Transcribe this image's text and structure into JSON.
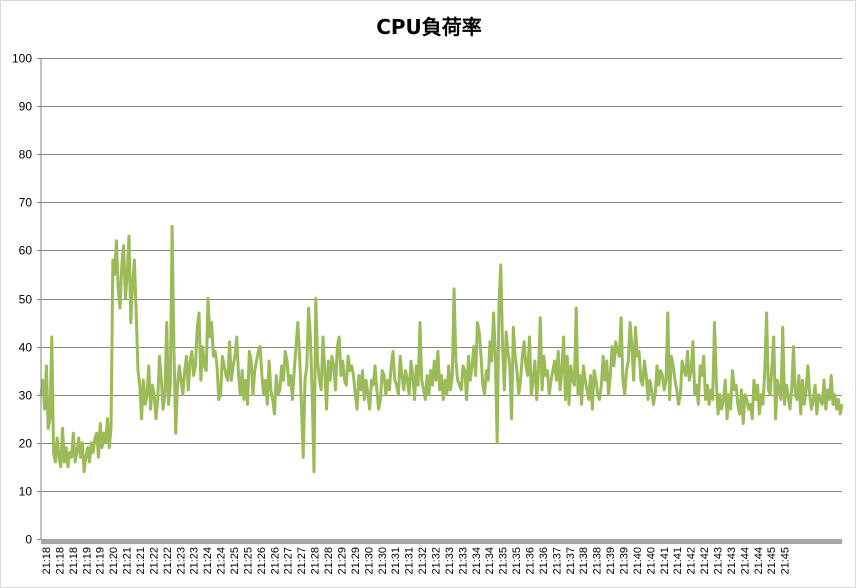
{
  "chart_data": {
    "type": "line",
    "title": "CPU負荷率",
    "xlabel": "",
    "ylabel": "",
    "ylim": [
      0,
      100
    ],
    "yticks": [
      0,
      10,
      20,
      30,
      40,
      50,
      60,
      70,
      80,
      90,
      100
    ],
    "grid": true,
    "legend": "none",
    "x_tick_labels": [
      "21:18",
      "21:18",
      "21:18",
      "21:19",
      "21:19",
      "21:20",
      "21:21",
      "21:21",
      "21:22",
      "21:22",
      "21:23",
      "21:23",
      "21:24",
      "21:24",
      "21:25",
      "21:25",
      "21:26",
      "21:26",
      "21:27",
      "21:27",
      "21:28",
      "21:28",
      "21:29",
      "21:29",
      "21:30",
      "21:30",
      "21:31",
      "21:31",
      "21:32",
      "21:32",
      "21:33",
      "21:33",
      "21:34",
      "21:34",
      "21:35",
      "21:35",
      "21:36",
      "21:36",
      "21:37",
      "21:37",
      "21:38",
      "21:38",
      "21:39",
      "21:39",
      "21:40",
      "21:40",
      "21:41",
      "21:41",
      "21:42",
      "21:42",
      "21:43",
      "21:43",
      "21:44",
      "21:44",
      "21:45",
      "21:45"
    ],
    "series": [
      {
        "color": "#9bbb59",
        "values": [
          30,
          33,
          27,
          36,
          23,
          25,
          42,
          18,
          16,
          21,
          17,
          15,
          23,
          16,
          19,
          15,
          18,
          17,
          22,
          16,
          18,
          21,
          17,
          20,
          14,
          17,
          19,
          16,
          20,
          18,
          21,
          22,
          17,
          24,
          19,
          22,
          20,
          25,
          19,
          23,
          58,
          55,
          62,
          52,
          48,
          57,
          61,
          50,
          55,
          63,
          45,
          53,
          58,
          47,
          35,
          32,
          25,
          33,
          28,
          30,
          36,
          27,
          32,
          30,
          25,
          29,
          38,
          33,
          27,
          30,
          45,
          28,
          32,
          65,
          40,
          22,
          32,
          36,
          33,
          30,
          35,
          38,
          31,
          37,
          39,
          34,
          36,
          44,
          47,
          33,
          40,
          36,
          35,
          50,
          42,
          45,
          38,
          39,
          36,
          29,
          30,
          38,
          36,
          34,
          33,
          41,
          33,
          36,
          38,
          42,
          34,
          30,
          35,
          29,
          33,
          28,
          39,
          37,
          30,
          35,
          37,
          39,
          40,
          34,
          30,
          33,
          28,
          37,
          31,
          29,
          26,
          34,
          30,
          31,
          36,
          33,
          39,
          37,
          32,
          34,
          29,
          35,
          40,
          45,
          38,
          28,
          17,
          33,
          36,
          48,
          42,
          30,
          14,
          50,
          37,
          33,
          31,
          42,
          35,
          27,
          37,
          33,
          38,
          36,
          31,
          40,
          42,
          34,
          37,
          33,
          32,
          38,
          35,
          36,
          34,
          30,
          27,
          34,
          31,
          35,
          29,
          33,
          30,
          27,
          33,
          32,
          36,
          31,
          27,
          29,
          35,
          34,
          30,
          33,
          31,
          36,
          39,
          33,
          32,
          30,
          38,
          34,
          31,
          35,
          33,
          30,
          37,
          34,
          29,
          36,
          32,
          45,
          33,
          31,
          29,
          34,
          30,
          35,
          32,
          37,
          33,
          39,
          31,
          34,
          29,
          33,
          30,
          36,
          31,
          34,
          52,
          37,
          33,
          32,
          31,
          36,
          35,
          29,
          38,
          33,
          36,
          40,
          34,
          45,
          43,
          38,
          32,
          30,
          35,
          33,
          41,
          37,
          47,
          38,
          20,
          49,
          57,
          40,
          31,
          43,
          39,
          36,
          25,
          44,
          38,
          35,
          30,
          33,
          38,
          41,
          36,
          34,
          42,
          30,
          33,
          37,
          29,
          35,
          46,
          31,
          38,
          34,
          35,
          30,
          33,
          35,
          37,
          33,
          39,
          31,
          35,
          42,
          29,
          38,
          28,
          36,
          33,
          32,
          48,
          30,
          34,
          28,
          36,
          33,
          31,
          29,
          34,
          27,
          35,
          33,
          30,
          29,
          32,
          38,
          33,
          37,
          30,
          34,
          40,
          36,
          41,
          39,
          38,
          46,
          33,
          30,
          35,
          37,
          45,
          40,
          33,
          44,
          38,
          39,
          33,
          32,
          37,
          34,
          29,
          33,
          31,
          28,
          30,
          36,
          32,
          35,
          34,
          31,
          33,
          47,
          29,
          38,
          36,
          33,
          31,
          28,
          30,
          37,
          35,
          34,
          39,
          33,
          35,
          41,
          30,
          32,
          28,
          36,
          34,
          38,
          29,
          32,
          28,
          31,
          29,
          45,
          33,
          26,
          30,
          27,
          29,
          33,
          25,
          30,
          27,
          35,
          31,
          32,
          28,
          26,
          31,
          24,
          30,
          29,
          27,
          28,
          25,
          33,
          29,
          32,
          26,
          30,
          28,
          35,
          47,
          31,
          30,
          36,
          42,
          25,
          33,
          31,
          29,
          44,
          28,
          32,
          30,
          27,
          31,
          40,
          30,
          29,
          34,
          26,
          33,
          28,
          31,
          36,
          30,
          27,
          29,
          32,
          26,
          30,
          29,
          28,
          33,
          27,
          31,
          29,
          34,
          28,
          30,
          27,
          29,
          26,
          28
        ]
      }
    ]
  }
}
